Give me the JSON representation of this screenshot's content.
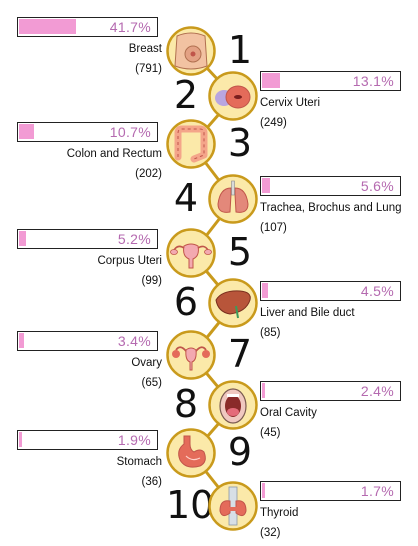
{
  "colors": {
    "bar_fill": "#f29bd4",
    "percent_text": "#b56ab0",
    "circle_fill": "#fbe9a9",
    "circle_ring": "#c99a1c",
    "organ_tissue": "#f4a58a",
    "organ_dark": "#c0554a"
  },
  "chart_data": {
    "type": "bar",
    "value_unit": "%",
    "categories": [
      "Breast",
      "Cervix Uteri",
      "Colon and Rectum",
      "Trachea, Brochus and Lung",
      "Corpus Uteri",
      "Liver and Bile duct",
      "Ovary",
      "Oral Cavity",
      "Stomach",
      "Thyroid"
    ],
    "ranks": [
      "1",
      "2",
      "3",
      "4",
      "5",
      "6",
      "7",
      "8",
      "9",
      "10"
    ],
    "values": [
      41.7,
      13.1,
      10.7,
      5.6,
      5.2,
      4.5,
      3.4,
      2.4,
      1.9,
      1.7
    ],
    "value_labels": [
      "41.7%",
      "13.1%",
      "10.7%",
      "5.6%",
      "5.2%",
      "4.5%",
      "3.4%",
      "2.4%",
      "1.9%",
      "1.7%"
    ],
    "counts": [
      "(791)",
      "(249)",
      "(202)",
      "(107)",
      "(99)",
      "(85)",
      "(65)",
      "(45)",
      "(36)",
      "(32)"
    ],
    "icons": [
      "breast-icon",
      "cervix-icon",
      "colon-icon",
      "lungs-icon",
      "uterus-icon",
      "liver-icon",
      "ovary-icon",
      "oral-cavity-icon",
      "stomach-icon",
      "thyroid-icon"
    ]
  }
}
